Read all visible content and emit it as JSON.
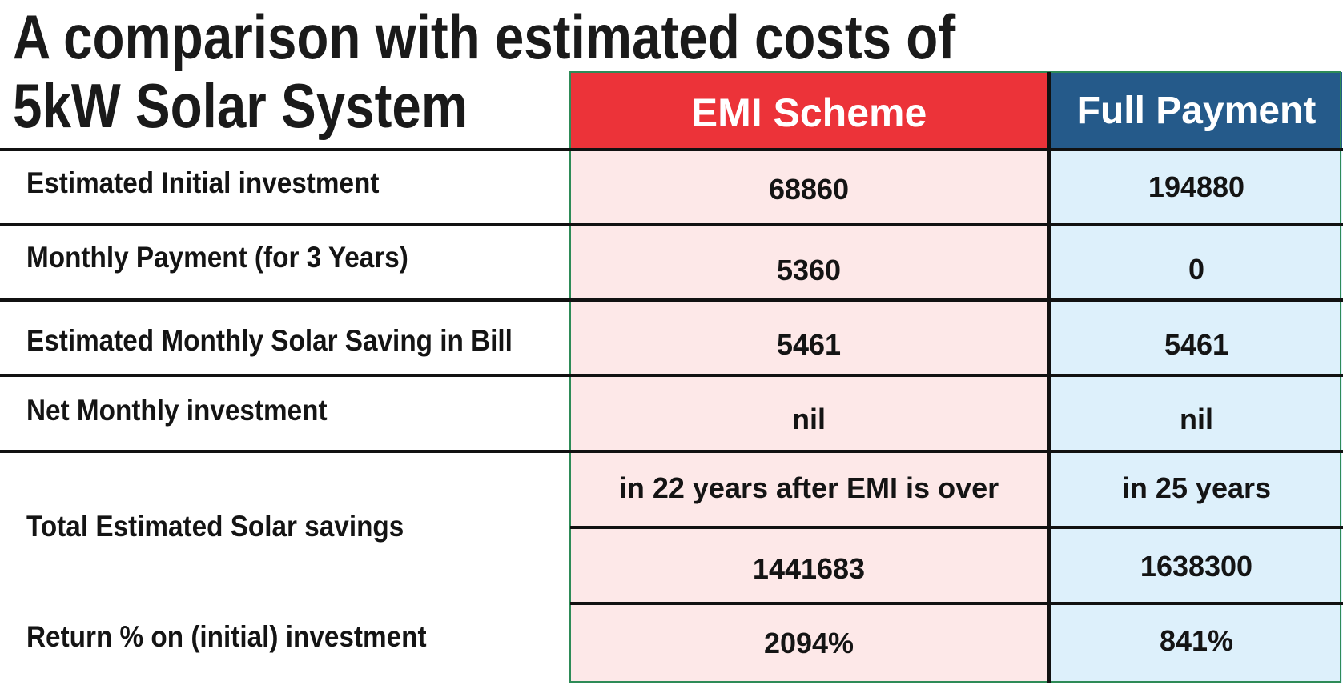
{
  "title_line1": "A comparison with estimated costs of",
  "title_line2": "5kW Solar System",
  "headers": {
    "emi": "EMI Scheme",
    "full": "Full Payment"
  },
  "rows": [
    {
      "label": "Estimated Initial investment",
      "emi": "68860",
      "full": "194880"
    },
    {
      "label": "Monthly Payment (for 3 Years)",
      "emi": "5360",
      "full": "0"
    },
    {
      "label": "Estimated Monthly Solar Saving in Bill",
      "emi": "5461",
      "full": "5461"
    },
    {
      "label": "Net Monthly investment",
      "emi": "nil",
      "full": "nil"
    },
    {
      "label": "Total Estimated Solar savings",
      "emi_period": "in 22 years after EMI is over",
      "full_period": "in 25 years",
      "emi": "1441683",
      "full": "1638300"
    },
    {
      "label": "Return % on (initial) investment",
      "emi": "2094%",
      "full": "841%"
    }
  ],
  "colors": {
    "emi_header": "#ec3339",
    "full_header": "#255a8a",
    "emi_bg": "#fde8e8",
    "full_bg": "#ddf0fb",
    "border": "#2e8b57"
  }
}
